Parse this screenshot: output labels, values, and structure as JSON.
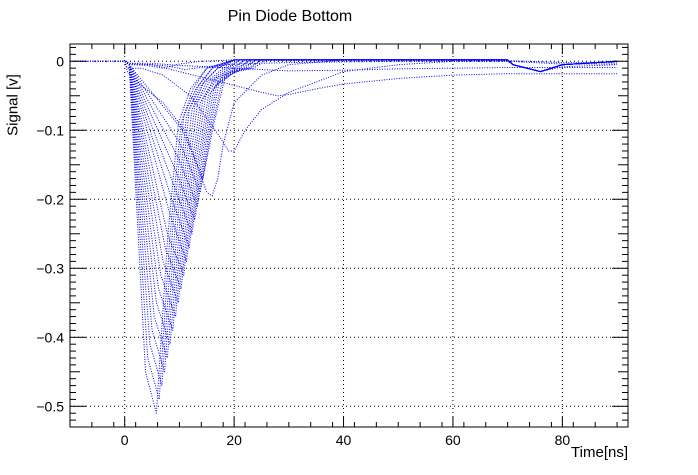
{
  "chart_data": {
    "type": "line",
    "title": "Pin Diode Bottom",
    "xlabel": "Time[ns]",
    "ylabel": "Signal [v]",
    "xlim": [
      -10,
      92
    ],
    "ylim": [
      -0.53,
      0.025
    ],
    "xticks": [
      0,
      20,
      40,
      60,
      80
    ],
    "xtick_labels": [
      "0",
      "20",
      "40",
      "60",
      "80"
    ],
    "yticks": [
      0,
      -0.1,
      -0.2,
      -0.3,
      -0.4,
      -0.5
    ],
    "ytick_labels": [
      "0",
      "−0.1",
      "−0.2",
      "−0.3",
      "−0.4",
      "−0.5"
    ],
    "grid": true,
    "line_color": "#0000ff",
    "line_style": "dotted",
    "series": [
      {
        "x": [
          -10,
          0,
          0.8,
          3.8,
          5.8,
          7.8,
          9.8,
          12,
          15,
          20,
          30,
          40,
          50,
          60,
          70,
          71,
          76,
          80,
          90
        ],
        "y": [
          0,
          0,
          -0.005,
          -0.45,
          -0.51,
          -0.26,
          -0.09,
          -0.04,
          -0.01,
          0.002,
          0.002,
          0.002,
          0.002,
          0.002,
          0.002,
          -0.005,
          -0.015,
          -0.005,
          0
        ]
      },
      {
        "x": [
          -10,
          0,
          0.8,
          4.2,
          6.3,
          8.3,
          10.3,
          12.5,
          15,
          20,
          30,
          40,
          50,
          60,
          70,
          71,
          76,
          80,
          90
        ],
        "y": [
          0,
          0,
          -0.005,
          -0.43,
          -0.49,
          -0.25,
          -0.09,
          -0.04,
          -0.01,
          0.002,
          0.002,
          0.002,
          0.002,
          0.002,
          0.002,
          -0.005,
          -0.015,
          -0.005,
          0
        ]
      },
      {
        "x": [
          -10,
          0,
          0.8,
          4.6,
          6.8,
          8.8,
          10.8,
          13,
          16,
          20,
          30,
          40,
          50,
          60,
          70,
          71,
          76,
          80,
          90
        ],
        "y": [
          0,
          0,
          -0.005,
          -0.41,
          -0.47,
          -0.24,
          -0.08,
          -0.04,
          -0.01,
          0.002,
          0.002,
          0.002,
          0.002,
          0.002,
          0.002,
          -0.005,
          -0.015,
          -0.005,
          0
        ]
      },
      {
        "x": [
          -10,
          0,
          0.8,
          5,
          7.3,
          9.3,
          11.3,
          13.5,
          16,
          20,
          30,
          40,
          50,
          60,
          70,
          71,
          76,
          80,
          90
        ],
        "y": [
          0,
          0,
          -0.005,
          -0.39,
          -0.45,
          -0.23,
          -0.08,
          -0.035,
          -0.01,
          0.002,
          0.002,
          0.002,
          0.002,
          0.002,
          0.002,
          -0.005,
          -0.015,
          -0.005,
          0
        ]
      },
      {
        "x": [
          -10,
          0,
          0.8,
          5.4,
          7.8,
          9.8,
          11.8,
          14,
          17,
          20,
          30,
          40,
          50,
          60,
          70,
          71,
          76,
          80,
          90
        ],
        "y": [
          0,
          0,
          -0.005,
          -0.37,
          -0.43,
          -0.22,
          -0.07,
          -0.035,
          -0.01,
          0.002,
          0.002,
          0.002,
          0.002,
          0.002,
          0.002,
          -0.005,
          -0.015,
          -0.005,
          0
        ]
      },
      {
        "x": [
          -10,
          0,
          0.8,
          5.8,
          8.3,
          10.3,
          12.3,
          14.5,
          17,
          20,
          30,
          40,
          50,
          60,
          70,
          71,
          76,
          80,
          90
        ],
        "y": [
          0,
          0,
          -0.005,
          -0.35,
          -0.41,
          -0.21,
          -0.07,
          -0.03,
          -0.01,
          0.002,
          0.002,
          0.002,
          0.002,
          0.002,
          0.002,
          -0.005,
          -0.015,
          -0.005,
          0
        ]
      },
      {
        "x": [
          -10,
          0,
          0.8,
          6.2,
          8.8,
          10.8,
          12.8,
          15,
          18,
          20,
          30,
          40,
          50,
          60,
          70,
          71,
          76,
          80,
          90
        ],
        "y": [
          0,
          0,
          -0.005,
          -0.33,
          -0.39,
          -0.2,
          -0.065,
          -0.03,
          -0.01,
          0.002,
          0.002,
          0.002,
          0.002,
          0.002,
          0.002,
          -0.005,
          -0.015,
          -0.005,
          0
        ]
      },
      {
        "x": [
          -10,
          0,
          0.8,
          6.6,
          9.3,
          11.3,
          13.3,
          15.5,
          18.5,
          21,
          30,
          40,
          50,
          60,
          70,
          71,
          76,
          80,
          90
        ],
        "y": [
          0,
          0,
          -0.005,
          -0.31,
          -0.37,
          -0.19,
          -0.06,
          -0.03,
          -0.01,
          0.002,
          0.002,
          0.002,
          0.002,
          0.002,
          0.002,
          -0.005,
          -0.015,
          -0.005,
          0
        ]
      },
      {
        "x": [
          -10,
          0,
          0.8,
          7,
          9.8,
          11.8,
          13.8,
          16,
          19,
          21,
          30,
          40,
          50,
          60,
          70,
          71,
          76,
          80,
          90
        ],
        "y": [
          0,
          0,
          -0.005,
          -0.29,
          -0.35,
          -0.18,
          -0.06,
          -0.03,
          -0.01,
          0.002,
          0.002,
          0.002,
          0.002,
          0.002,
          0.002,
          -0.005,
          -0.015,
          -0.005,
          0
        ]
      },
      {
        "x": [
          -10,
          0,
          0.8,
          7.4,
          10.3,
          12.3,
          14.3,
          16.5,
          19.5,
          22,
          30,
          40,
          50,
          60,
          70,
          71,
          76,
          80,
          90
        ],
        "y": [
          0,
          0,
          -0.005,
          -0.27,
          -0.33,
          -0.17,
          -0.055,
          -0.025,
          -0.01,
          0.002,
          0.002,
          0.002,
          0.002,
          0.002,
          0.002,
          -0.005,
          -0.015,
          -0.005,
          0
        ]
      },
      {
        "x": [
          -10,
          0,
          0.8,
          7.8,
          10.8,
          12.8,
          14.8,
          17,
          20,
          22,
          30,
          40,
          50,
          60,
          70,
          71,
          76,
          80,
          90
        ],
        "y": [
          0,
          0,
          -0.005,
          -0.25,
          -0.31,
          -0.16,
          -0.05,
          -0.025,
          -0.01,
          0.002,
          0.002,
          0.002,
          0.002,
          0.002,
          0.002,
          -0.005,
          -0.015,
          -0.005,
          0
        ]
      },
      {
        "x": [
          -10,
          0,
          0.8,
          8.2,
          11.3,
          13.3,
          15.3,
          17.5,
          20.5,
          23,
          30,
          40,
          50,
          60,
          70,
          71,
          76,
          80,
          90
        ],
        "y": [
          0,
          0,
          -0.005,
          -0.22,
          -0.29,
          -0.15,
          -0.05,
          -0.025,
          -0.01,
          0.002,
          0.002,
          0.002,
          0.002,
          0.002,
          0.002,
          -0.005,
          -0.015,
          -0.005,
          0
        ]
      },
      {
        "x": [
          -10,
          0,
          0.8,
          8.6,
          11.8,
          13.8,
          15.8,
          18,
          21,
          23,
          30,
          40,
          50,
          60,
          70,
          71,
          76,
          80,
          90
        ],
        "y": [
          0,
          0,
          -0.005,
          -0.2,
          -0.27,
          -0.14,
          -0.045,
          -0.02,
          -0.01,
          0.002,
          0.002,
          0.002,
          0.002,
          0.002,
          0.002,
          -0.005,
          -0.015,
          -0.005,
          0
        ]
      },
      {
        "x": [
          -10,
          0,
          0.8,
          9,
          12.3,
          14.3,
          16.3,
          18.5,
          21.5,
          24,
          30,
          40,
          50,
          60,
          70,
          71,
          76,
          80,
          90
        ],
        "y": [
          0,
          0,
          -0.005,
          -0.18,
          -0.25,
          -0.13,
          -0.04,
          -0.02,
          -0.01,
          0.002,
          0.002,
          0.002,
          0.002,
          0.002,
          0.002,
          -0.005,
          -0.015,
          -0.005,
          0
        ]
      },
      {
        "x": [
          -10,
          0,
          0.8,
          9.4,
          12.8,
          14.8,
          16.8,
          19,
          22,
          24,
          30,
          40,
          50,
          60,
          70,
          71,
          76,
          80,
          90
        ],
        "y": [
          0,
          0,
          -0.005,
          -0.16,
          -0.23,
          -0.12,
          -0.035,
          -0.02,
          -0.01,
          0.002,
          0.002,
          0.002,
          0.002,
          0.002,
          0.002,
          -0.005,
          -0.015,
          -0.005,
          0
        ]
      },
      {
        "x": [
          -10,
          0,
          0.8,
          9.8,
          13.3,
          15.3,
          17.3,
          19.5,
          22.5,
          25,
          30,
          40,
          50,
          60,
          70,
          71,
          76,
          80,
          90
        ],
        "y": [
          0,
          0,
          -0.005,
          -0.14,
          -0.21,
          -0.11,
          -0.03,
          -0.015,
          -0.01,
          0.002,
          0.002,
          0.002,
          0.002,
          0.002,
          0.002,
          -0.005,
          -0.015,
          -0.005,
          0
        ]
      },
      {
        "x": [
          -10,
          0,
          0.8,
          10.2,
          13.8,
          15.8,
          17.8,
          20,
          23,
          25,
          30,
          40,
          50,
          60,
          70,
          71,
          76,
          80,
          90
        ],
        "y": [
          0,
          0,
          -0.005,
          -0.12,
          -0.19,
          -0.1,
          -0.03,
          -0.015,
          -0.01,
          0.002,
          0.002,
          0.002,
          0.002,
          0.002,
          0.002,
          -0.005,
          -0.015,
          -0.005,
          0
        ]
      },
      {
        "x": [
          -10,
          0,
          0.8,
          10.6,
          14.3,
          16.3,
          18.3,
          20.5,
          23.5,
          26,
          30,
          40,
          50,
          60,
          70,
          71,
          76,
          80,
          90
        ],
        "y": [
          0,
          0,
          -0.005,
          -0.1,
          -0.17,
          -0.09,
          -0.025,
          -0.015,
          -0.01,
          0.002,
          0.002,
          0.002,
          0.002,
          0.002,
          0.002,
          -0.005,
          -0.015,
          -0.005,
          0
        ]
      },
      {
        "x": [
          -10,
          0,
          0.5,
          3,
          7,
          11,
          15,
          16,
          17,
          18,
          20,
          25,
          30,
          40,
          50,
          60,
          70,
          71,
          76,
          80,
          90
        ],
        "y": [
          0,
          0,
          -0.015,
          -0.035,
          -0.06,
          -0.1,
          -0.19,
          -0.195,
          -0.17,
          -0.12,
          -0.06,
          -0.02,
          -0.005,
          0.002,
          0.002,
          0.002,
          0.002,
          -0.005,
          -0.015,
          -0.005,
          0
        ]
      },
      {
        "x": [
          -10,
          0,
          0.5,
          3,
          7,
          12,
          17,
          19,
          20,
          22,
          25,
          30,
          35,
          40,
          50,
          60,
          70,
          71,
          76,
          80,
          90
        ],
        "y": [
          0,
          0,
          -0.01,
          -0.01,
          -0.02,
          -0.05,
          -0.105,
          -0.13,
          -0.13,
          -0.1,
          -0.07,
          -0.045,
          -0.03,
          -0.015,
          -0.005,
          0,
          0,
          -0.005,
          -0.015,
          -0.008,
          -0.005
        ]
      },
      {
        "x": [
          -10,
          0,
          1,
          5,
          10,
          15,
          20,
          25,
          28,
          30,
          35,
          40,
          50,
          60,
          70,
          80,
          90
        ],
        "y": [
          0,
          0,
          -0.005,
          -0.005,
          -0.015,
          -0.025,
          -0.035,
          -0.045,
          -0.05,
          -0.048,
          -0.04,
          -0.033,
          -0.025,
          -0.02,
          -0.018,
          -0.018,
          -0.018
        ]
      },
      {
        "x": [
          -10,
          0,
          1,
          5,
          10,
          15,
          20,
          25,
          30,
          40,
          50,
          60,
          70,
          80,
          90
        ],
        "y": [
          0,
          0,
          -0.003,
          -0.003,
          -0.006,
          -0.008,
          -0.01,
          -0.012,
          -0.014,
          -0.013,
          -0.011,
          -0.01,
          -0.009,
          -0.009,
          -0.009
        ]
      },
      {
        "x": [
          -10,
          0,
          1,
          5,
          8,
          11,
          15,
          20,
          30,
          40,
          50,
          60,
          70,
          80,
          90
        ],
        "y": [
          0,
          0,
          -0.003,
          -0.005,
          -0.007,
          -0.012,
          -0.008,
          -0.004,
          -0.002,
          -0.001,
          0,
          0,
          0,
          -0.004,
          -0.004
        ]
      },
      {
        "x": [
          -10,
          0,
          1,
          4,
          7,
          10,
          14,
          20,
          30,
          40,
          50,
          60,
          70,
          80,
          90
        ],
        "y": [
          0,
          0,
          -0.004,
          -0.006,
          -0.01,
          -0.004,
          0,
          0.002,
          0.001,
          0.001,
          0.001,
          0.001,
          0.001,
          -0.002,
          -0.002
        ]
      }
    ]
  }
}
